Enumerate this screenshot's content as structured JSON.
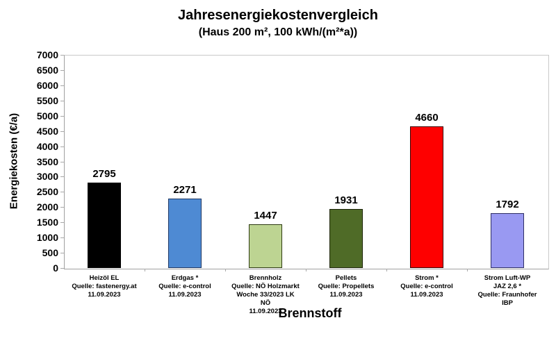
{
  "chart_data": {
    "type": "bar",
    "title": "Jahresenergiekostenvergleich",
    "subtitle": "(Haus 200 m², 100 kWh/(m²*a))",
    "xlabel": "Brennstoff",
    "ylabel": "Energiekosten (€/a)",
    "ylim": [
      0,
      7000
    ],
    "ytick_step": 500,
    "grid": false,
    "legend": false,
    "background_color": "#ffffff",
    "text_color": "#000000",
    "categories": [
      {
        "lines": [
          "Heizöl EL",
          "Quelle: fastenergy.at",
          "11.09.2023"
        ]
      },
      {
        "lines": [
          "Erdgas *",
          "Quelle: e-control",
          "11.09.2023"
        ]
      },
      {
        "lines": [
          "Brennholz",
          "Quelle: NÖ Holzmarkt",
          "Woche 33/2023 LK",
          "NÖ",
          "11.09.2023"
        ]
      },
      {
        "lines": [
          "Pellets",
          "Quelle: Propellets",
          "11.09.2023"
        ]
      },
      {
        "lines": [
          "Strom *",
          "Quelle: e-control",
          "11.09.2023"
        ]
      },
      {
        "lines": [
          "Strom Luft-WP",
          "JAZ 2,6 *",
          "Quelle: Fraunhofer",
          "IBP"
        ]
      }
    ],
    "values": [
      2795,
      2271,
      1447,
      1931,
      4660,
      1792
    ],
    "bar_colors": [
      "#000000",
      "#4e8ad3",
      "#bdd492",
      "#4f6b27",
      "#fe0000",
      "#9999f2"
    ],
    "bar_border_colors": [
      "#000000",
      "#1f3864",
      "#2d3a12",
      "#1c2409",
      "#3a0000",
      "#2f2f66"
    ]
  }
}
